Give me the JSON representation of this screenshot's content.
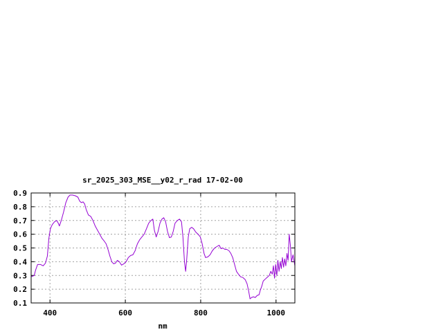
{
  "chart_data": {
    "type": "line",
    "title": "sr_2025_303_MSE__y02_r_rad 17-02-00",
    "xlabel": "nm",
    "ylabel": "",
    "xlim": [
      350,
      1050
    ],
    "ylim": [
      0.1,
      0.9
    ],
    "x_ticks": [
      400,
      600,
      800,
      1000
    ],
    "y_ticks": [
      0.1,
      0.2,
      0.3,
      0.4,
      0.5,
      0.6,
      0.7,
      0.8,
      0.9
    ],
    "grid": true,
    "legend": "none",
    "line_color": "#9400d3",
    "series": [
      {
        "points": [
          [
            350,
            0.29
          ],
          [
            358,
            0.3
          ],
          [
            362,
            0.34
          ],
          [
            367,
            0.38
          ],
          [
            375,
            0.38
          ],
          [
            382,
            0.37
          ],
          [
            388,
            0.39
          ],
          [
            393,
            0.44
          ],
          [
            397,
            0.57
          ],
          [
            401,
            0.64
          ],
          [
            406,
            0.67
          ],
          [
            412,
            0.69
          ],
          [
            418,
            0.7
          ],
          [
            422,
            0.68
          ],
          [
            425,
            0.66
          ],
          [
            430,
            0.7
          ],
          [
            436,
            0.76
          ],
          [
            442,
            0.83
          ],
          [
            448,
            0.87
          ],
          [
            453,
            0.885
          ],
          [
            460,
            0.885
          ],
          [
            467,
            0.88
          ],
          [
            474,
            0.87
          ],
          [
            479,
            0.84
          ],
          [
            483,
            0.83
          ],
          [
            488,
            0.835
          ],
          [
            492,
            0.82
          ],
          [
            496,
            0.78
          ],
          [
            502,
            0.74
          ],
          [
            508,
            0.73
          ],
          [
            514,
            0.7
          ],
          [
            520,
            0.66
          ],
          [
            526,
            0.63
          ],
          [
            532,
            0.6
          ],
          [
            538,
            0.57
          ],
          [
            544,
            0.55
          ],
          [
            549,
            0.53
          ],
          [
            554,
            0.49
          ],
          [
            559,
            0.44
          ],
          [
            564,
            0.4
          ],
          [
            569,
            0.385
          ],
          [
            574,
            0.39
          ],
          [
            579,
            0.41
          ],
          [
            584,
            0.4
          ],
          [
            590,
            0.375
          ],
          [
            596,
            0.385
          ],
          [
            602,
            0.4
          ],
          [
            608,
            0.43
          ],
          [
            614,
            0.445
          ],
          [
            620,
            0.45
          ],
          [
            626,
            0.48
          ],
          [
            632,
            0.53
          ],
          [
            638,
            0.56
          ],
          [
            644,
            0.58
          ],
          [
            650,
            0.6
          ],
          [
            656,
            0.64
          ],
          [
            662,
            0.68
          ],
          [
            668,
            0.7
          ],
          [
            673,
            0.71
          ],
          [
            677,
            0.63
          ],
          [
            682,
            0.58
          ],
          [
            687,
            0.62
          ],
          [
            692,
            0.68
          ],
          [
            697,
            0.71
          ],
          [
            702,
            0.72
          ],
          [
            707,
            0.69
          ],
          [
            712,
            0.62
          ],
          [
            717,
            0.575
          ],
          [
            722,
            0.58
          ],
          [
            727,
            0.62
          ],
          [
            732,
            0.68
          ],
          [
            738,
            0.7
          ],
          [
            744,
            0.71
          ],
          [
            749,
            0.69
          ],
          [
            753,
            0.58
          ],
          [
            757,
            0.4
          ],
          [
            760,
            0.33
          ],
          [
            763,
            0.42
          ],
          [
            767,
            0.58
          ],
          [
            771,
            0.64
          ],
          [
            776,
            0.65
          ],
          [
            781,
            0.64
          ],
          [
            787,
            0.615
          ],
          [
            793,
            0.6
          ],
          [
            799,
            0.58
          ],
          [
            804,
            0.53
          ],
          [
            809,
            0.46
          ],
          [
            813,
            0.43
          ],
          [
            819,
            0.435
          ],
          [
            825,
            0.45
          ],
          [
            831,
            0.48
          ],
          [
            837,
            0.5
          ],
          [
            843,
            0.51
          ],
          [
            849,
            0.52
          ],
          [
            854,
            0.495
          ],
          [
            859,
            0.5
          ],
          [
            864,
            0.49
          ],
          [
            869,
            0.49
          ],
          [
            875,
            0.48
          ],
          [
            880,
            0.46
          ],
          [
            885,
            0.43
          ],
          [
            890,
            0.38
          ],
          [
            895,
            0.33
          ],
          [
            900,
            0.31
          ],
          [
            906,
            0.29
          ],
          [
            912,
            0.285
          ],
          [
            918,
            0.27
          ],
          [
            923,
            0.24
          ],
          [
            927,
            0.19
          ],
          [
            931,
            0.13
          ],
          [
            935,
            0.14
          ],
          [
            940,
            0.145
          ],
          [
            945,
            0.14
          ],
          [
            950,
            0.155
          ],
          [
            955,
            0.16
          ],
          [
            958,
            0.19
          ],
          [
            962,
            0.22
          ],
          [
            966,
            0.26
          ],
          [
            970,
            0.27
          ],
          [
            974,
            0.28
          ],
          [
            978,
            0.29
          ],
          [
            982,
            0.3
          ],
          [
            986,
            0.33
          ],
          [
            990,
            0.31
          ],
          [
            993,
            0.37
          ],
          [
            996,
            0.28
          ],
          [
            999,
            0.38
          ],
          [
            1002,
            0.3
          ],
          [
            1005,
            0.41
          ],
          [
            1008,
            0.33
          ],
          [
            1011,
            0.4
          ],
          [
            1014,
            0.35
          ],
          [
            1017,
            0.43
          ],
          [
            1020,
            0.36
          ],
          [
            1023,
            0.42
          ],
          [
            1026,
            0.37
          ],
          [
            1029,
            0.46
          ],
          [
            1032,
            0.41
          ],
          [
            1035,
            0.6
          ],
          [
            1038,
            0.52
          ],
          [
            1041,
            0.4
          ],
          [
            1045,
            0.45
          ],
          [
            1050,
            0.37
          ]
        ]
      }
    ]
  }
}
